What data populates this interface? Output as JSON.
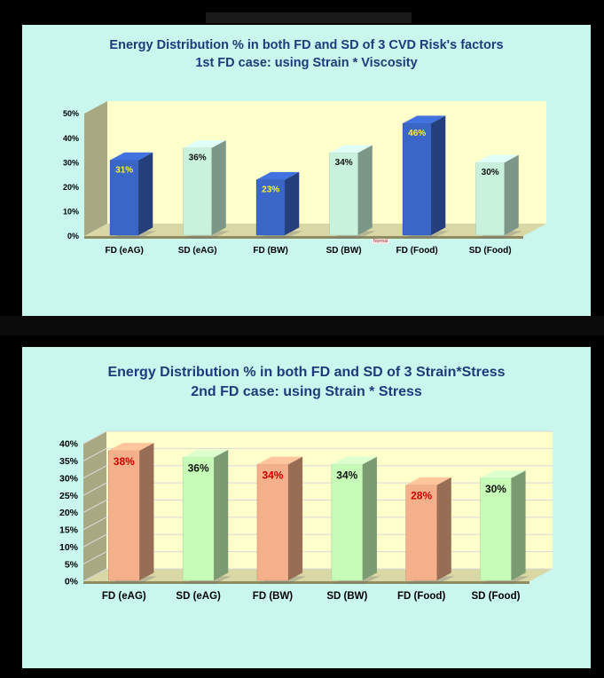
{
  "charts": [
    {
      "title_line1": "Energy Distribution % in both FD and SD of 3 CVD Risk's factors",
      "title_line2": "1st FD case: using Strain * Viscosity",
      "overlay_label": "Normal"
    },
    {
      "title_line1": "Energy Distribution % in both FD and SD of 3 Strain*Stress",
      "title_line2": "2nd FD case: using Strain * Stress"
    }
  ],
  "colors": {
    "panel_bg": "#c9f7ee",
    "plot_bg": "#ffffcc",
    "title": "#1f3a7a",
    "fd_chart1": "#3a66c8",
    "sd_chart1": "#c8f2dc",
    "fd_chart2": "#f4b08a",
    "sd_chart2": "#c6fcb8",
    "fd_label_chart1": "#ffee33",
    "fd_label_chart2": "#cc0000"
  },
  "chart_data": [
    {
      "type": "bar",
      "title": "Energy Distribution % in both FD and SD of 3 CVD Risk's factors",
      "subtitle": "1st FD case: using Strain * Viscosity",
      "categories": [
        "FD (eAG)",
        "SD (eAG)",
        "FD (BW)",
        "SD (BW)",
        "FD (Food)",
        "SD (Food)"
      ],
      "values": [
        31,
        36,
        23,
        34,
        46,
        30
      ],
      "data_labels": [
        "31%",
        "36%",
        "23%",
        "34%",
        "46%",
        "30%"
      ],
      "ylim": [
        0,
        50
      ],
      "yticks": [
        "0%",
        "10%",
        "20%",
        "30%",
        "40%",
        "50%"
      ],
      "grid": false,
      "style": "3d-column"
    },
    {
      "type": "bar",
      "title": "Energy Distribution % in both FD and SD of 3 Strain*Stress",
      "subtitle": "2nd FD case: using Strain * Stress",
      "categories": [
        "FD (eAG)",
        "SD (eAG)",
        "FD (BW)",
        "SD (BW)",
        "FD (Food)",
        "SD (Food)"
      ],
      "values": [
        38,
        36,
        34,
        34,
        28,
        30
      ],
      "data_labels": [
        "38%",
        "36%",
        "34%",
        "34%",
        "28%",
        "30%"
      ],
      "ylim": [
        0,
        40
      ],
      "yticks": [
        "0%",
        "5%",
        "10%",
        "15%",
        "20%",
        "25%",
        "30%",
        "35%",
        "40%"
      ],
      "grid": true,
      "style": "3d-column"
    }
  ]
}
